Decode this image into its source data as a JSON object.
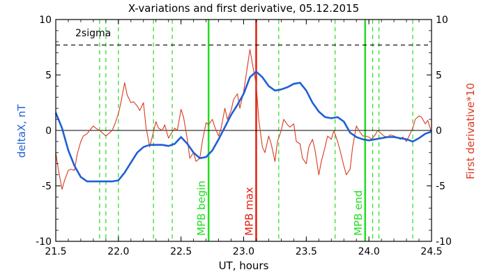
{
  "chart_data": {
    "type": "line",
    "title": "X-variations and first derivative, 05.12.2015",
    "xlabel": "UT, hours",
    "ylabel_left": "deltaX, nT",
    "ylabel_right": "First derivative*10",
    "xlim": [
      21.5,
      24.5
    ],
    "ylim_left": [
      -10,
      10
    ],
    "ylim_right": [
      -10,
      10
    ],
    "x_ticks": [
      "21.5",
      "22.0",
      "22.5",
      "23.0",
      "23.5",
      "24.0",
      "24.5"
    ],
    "y_ticks_left": [
      "-10",
      "-5",
      "0",
      "5",
      "10"
    ],
    "y_ticks_right": [
      "-10",
      "-5",
      "0",
      "5",
      "10"
    ],
    "grid": false,
    "colors": {
      "deltaX": "#1f5fd6",
      "derivative": "#d83a1e",
      "mpb_lines": "#22dd22",
      "max_line": "#e02010",
      "threshold": "#000000"
    },
    "threshold": {
      "label": "2sigma",
      "value": 7.7
    },
    "zero_line": 0,
    "series": [
      {
        "axis": "left",
        "style": "thick",
        "x": [
          21.5,
          21.55,
          21.6,
          21.65,
          21.7,
          21.75,
          21.8,
          21.85,
          21.9,
          21.95,
          22.0,
          22.05,
          22.1,
          22.15,
          22.2,
          22.25,
          22.3,
          22.35,
          22.4,
          22.45,
          22.5,
          22.55,
          22.6,
          22.65,
          22.7,
          22.75,
          22.8,
          22.85,
          22.9,
          22.95,
          23.0,
          23.05,
          23.1,
          23.15,
          23.2,
          23.25,
          23.3,
          23.35,
          23.4,
          23.45,
          23.5,
          23.55,
          23.6,
          23.65,
          23.7,
          23.75,
          23.8,
          23.85,
          23.9,
          23.95,
          24.0,
          24.05,
          24.1,
          24.15,
          24.2,
          24.25,
          24.3,
          24.35,
          24.4,
          24.45,
          24.5
        ],
        "values": [
          1.6,
          0.2,
          -1.8,
          -3.2,
          -4.2,
          -4.6,
          -4.6,
          -4.6,
          -4.6,
          -4.6,
          -4.5,
          -3.8,
          -2.9,
          -2.0,
          -1.5,
          -1.3,
          -1.3,
          -1.3,
          -1.4,
          -1.2,
          -0.6,
          -1.2,
          -2.0,
          -2.5,
          -2.4,
          -1.8,
          -0.8,
          0.3,
          1.4,
          2.3,
          3.3,
          4.8,
          5.3,
          4.8,
          4.0,
          3.6,
          3.7,
          3.9,
          4.2,
          4.3,
          3.6,
          2.5,
          1.7,
          1.2,
          1.1,
          1.2,
          0.8,
          -0.2,
          -0.6,
          -0.8,
          -0.9,
          -0.8,
          -0.7,
          -0.6,
          -0.6,
          -0.7,
          -0.8,
          -1.0,
          -0.7,
          -0.3,
          -0.1
        ]
      },
      {
        "axis": "right",
        "style": "thin",
        "x": [
          21.5,
          21.52,
          21.55,
          21.57,
          21.6,
          21.62,
          21.65,
          21.67,
          21.7,
          21.72,
          21.75,
          21.77,
          21.8,
          21.82,
          21.85,
          21.87,
          21.9,
          21.92,
          21.95,
          21.97,
          22.0,
          22.02,
          22.05,
          22.07,
          22.1,
          22.12,
          22.15,
          22.17,
          22.2,
          22.22,
          22.25,
          22.27,
          22.3,
          22.32,
          22.35,
          22.37,
          22.4,
          22.42,
          22.45,
          22.47,
          22.5,
          22.52,
          22.55,
          22.57,
          22.6,
          22.62,
          22.65,
          22.67,
          22.7,
          22.72,
          22.75,
          22.77,
          22.8,
          22.82,
          22.85,
          22.87,
          22.9,
          22.92,
          22.95,
          22.97,
          23.0,
          23.02,
          23.05,
          23.07,
          23.1,
          23.12,
          23.15,
          23.17,
          23.2,
          23.22,
          23.25,
          23.27,
          23.3,
          23.32,
          23.35,
          23.37,
          23.4,
          23.42,
          23.45,
          23.47,
          23.5,
          23.52,
          23.55,
          23.57,
          23.6,
          23.62,
          23.65,
          23.67,
          23.7,
          23.72,
          23.75,
          23.77,
          23.8,
          23.82,
          23.85,
          23.87,
          23.9,
          23.92,
          23.95,
          23.97,
          24.0,
          24.02,
          24.05,
          24.07,
          24.1,
          24.12,
          24.15,
          24.17,
          24.2,
          24.22,
          24.25,
          24.27,
          24.3,
          24.32,
          24.35,
          24.37,
          24.4,
          24.42,
          24.45,
          24.47,
          24.5
        ],
        "values": [
          -2.0,
          -3.5,
          -5.3,
          -4.5,
          -3.6,
          -3.5,
          -3.6,
          -2.2,
          -1.0,
          -0.5,
          -0.3,
          0.0,
          0.4,
          0.2,
          0.0,
          -0.2,
          -0.5,
          -0.3,
          0.0,
          0.5,
          1.5,
          2.5,
          4.3,
          3.2,
          2.5,
          2.6,
          2.2,
          1.8,
          2.5,
          0.3,
          -1.5,
          -0.6,
          0.8,
          0.2,
          0.0,
          0.5,
          -0.7,
          -0.3,
          0.2,
          0.0,
          1.9,
          1.2,
          -0.8,
          -2.5,
          -2.0,
          -2.8,
          -2.5,
          -1.0,
          0.7,
          0.5,
          1.0,
          0.3,
          -0.5,
          0.2,
          2.0,
          1.0,
          1.8,
          2.8,
          3.3,
          2.0,
          3.5,
          5.0,
          7.3,
          6.0,
          4.2,
          1.0,
          -1.5,
          -2.0,
          -0.5,
          -1.2,
          -2.8,
          -1.0,
          0.0,
          1.0,
          0.5,
          0.3,
          0.6,
          -1.0,
          -1.2,
          -2.5,
          -3.0,
          -1.5,
          -0.8,
          -1.8,
          -4.0,
          -2.8,
          -1.5,
          -0.5,
          -0.8,
          0.0,
          -1.0,
          -1.8,
          -3.2,
          -4.0,
          -3.5,
          -1.5,
          0.4,
          0.0,
          -0.5,
          -0.5,
          -0.6,
          -0.8,
          -0.4,
          0.0,
          -0.3,
          -0.5,
          -0.6,
          -0.4,
          -0.5,
          -0.6,
          -0.8,
          -0.6,
          -1.0,
          -0.5,
          0.2,
          1.0,
          1.3,
          1.2,
          0.6,
          0.9,
          -0.2
        ]
      }
    ],
    "vertical_lines": [
      {
        "x": 21.85,
        "style": "dashed",
        "label": ""
      },
      {
        "x": 21.9,
        "style": "dashed",
        "label": ""
      },
      {
        "x": 22.0,
        "style": "dashed",
        "label": ""
      },
      {
        "x": 22.28,
        "style": "dashed",
        "label": ""
      },
      {
        "x": 22.43,
        "style": "dashed",
        "label": ""
      },
      {
        "x": 22.72,
        "style": "solid",
        "label": "MPB begin"
      },
      {
        "x": 23.1,
        "style": "max",
        "label": "MPB max"
      },
      {
        "x": 23.28,
        "style": "dashed",
        "label": ""
      },
      {
        "x": 23.73,
        "style": "dashed",
        "label": ""
      },
      {
        "x": 23.97,
        "style": "solid",
        "label": "MPB end"
      },
      {
        "x": 24.03,
        "style": "dashed",
        "label": ""
      },
      {
        "x": 24.08,
        "style": "dashed",
        "label": ""
      },
      {
        "x": 24.35,
        "style": "dashed",
        "label": ""
      }
    ]
  }
}
